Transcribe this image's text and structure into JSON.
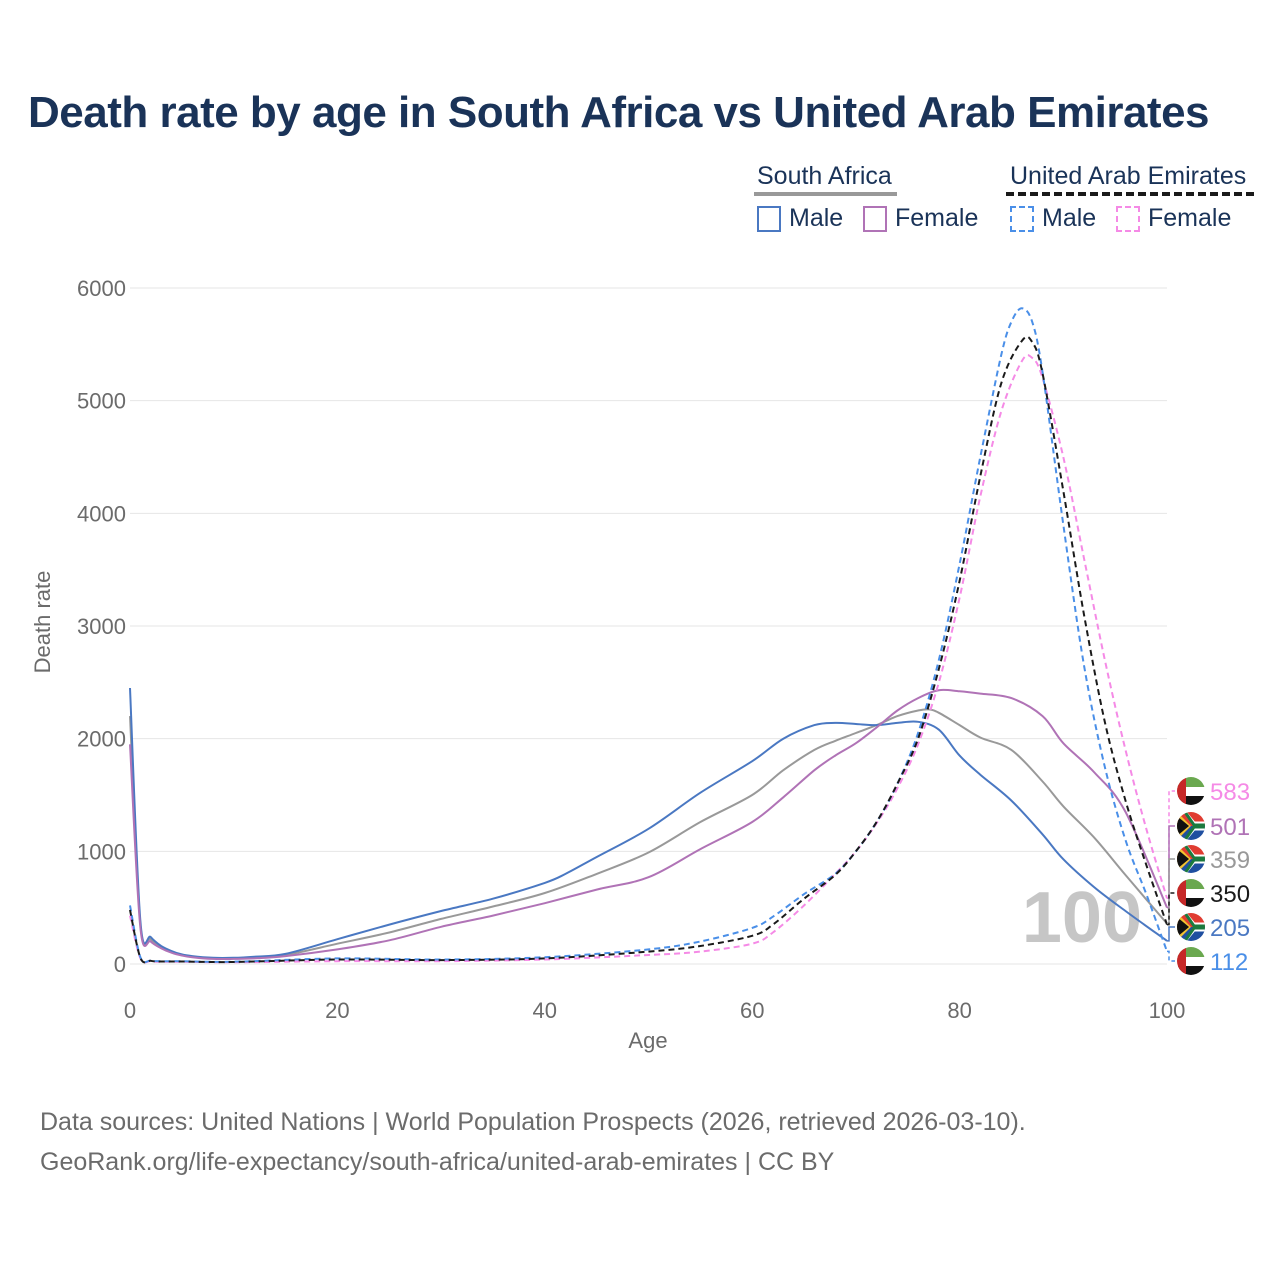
{
  "title": "Death rate by age in South Africa vs United Arab Emirates",
  "legend": {
    "groups": [
      {
        "name": "South Africa",
        "items": [
          {
            "label": "Male",
            "color": "#4a78c2",
            "style": "solid"
          },
          {
            "label": "Female",
            "color": "#b073b6",
            "style": "solid"
          }
        ]
      },
      {
        "name": "United Arab Emirates",
        "items": [
          {
            "label": "Male",
            "color": "#4a8fe8",
            "style": "dashed"
          },
          {
            "label": "Female",
            "color": "#f58ae6",
            "style": "dashed"
          }
        ]
      }
    ]
  },
  "footer": {
    "line1": "Data sources: United Nations | World Population Prospects (2026, retrieved 2026-03-10).",
    "line2": "GeoRank.org/life-expectancy/south-africa/united-arab-emirates | CC BY"
  },
  "chart_data": {
    "type": "line",
    "title": "Death rate by age in South Africa vs United Arab Emirates",
    "xlabel": "Age",
    "ylabel": "Death rate",
    "xlim": [
      0,
      100
    ],
    "ylim": [
      0,
      6000
    ],
    "xticks": [
      0,
      20,
      40,
      60,
      80,
      100
    ],
    "yticks": [
      0,
      1000,
      2000,
      3000,
      4000,
      5000,
      6000
    ],
    "grid": true,
    "watermark": "100",
    "series": [
      {
        "name": "South Africa Male",
        "color": "#4a78c2",
        "dash": "solid",
        "x": [
          0,
          1,
          2,
          3,
          4,
          5,
          6,
          8,
          10,
          12,
          15,
          20,
          25,
          30,
          35,
          40,
          42,
          45,
          50,
          55,
          60,
          63,
          66,
          68,
          70,
          72,
          74,
          76,
          78,
          80,
          82,
          85,
          88,
          90,
          93,
          96,
          100
        ],
        "y": [
          2450,
          380,
          240,
          160,
          115,
          85,
          70,
          55,
          55,
          65,
          90,
          220,
          350,
          470,
          580,
          720,
          800,
          950,
          1200,
          1520,
          1800,
          2000,
          2120,
          2140,
          2130,
          2120,
          2140,
          2150,
          2080,
          1850,
          1680,
          1450,
          1150,
          930,
          680,
          470,
          205
        ]
      },
      {
        "name": "South Africa Female",
        "color": "#b073b6",
        "dash": "solid",
        "x": [
          0,
          1,
          2,
          3,
          4,
          5,
          6,
          8,
          10,
          12,
          15,
          20,
          25,
          30,
          35,
          40,
          45,
          50,
          55,
          60,
          63,
          66,
          68,
          70,
          72,
          74,
          76,
          78,
          80,
          82,
          85,
          88,
          90,
          93,
          96,
          100
        ],
        "y": [
          1950,
          320,
          200,
          140,
          100,
          75,
          60,
          45,
          45,
          50,
          70,
          130,
          210,
          330,
          430,
          540,
          660,
          770,
          1020,
          1260,
          1480,
          1720,
          1850,
          1960,
          2100,
          2250,
          2360,
          2430,
          2420,
          2400,
          2360,
          2200,
          1960,
          1700,
          1350,
          501
        ]
      },
      {
        "name": "South Africa Total",
        "color": "#999999",
        "dash": "solid",
        "x": [
          0,
          1,
          2,
          3,
          4,
          5,
          6,
          8,
          10,
          12,
          15,
          20,
          25,
          30,
          35,
          40,
          45,
          50,
          55,
          60,
          63,
          66,
          68,
          70,
          72,
          74,
          76,
          77,
          78,
          80,
          82,
          85,
          88,
          90,
          93,
          96,
          100
        ],
        "y": [
          2200,
          350,
          220,
          150,
          108,
          80,
          65,
          50,
          50,
          58,
          80,
          180,
          280,
          400,
          510,
          630,
          800,
          990,
          1260,
          1500,
          1720,
          1900,
          1980,
          2050,
          2120,
          2200,
          2250,
          2260,
          2230,
          2120,
          2010,
          1900,
          1620,
          1400,
          1120,
          790,
          359
        ]
      },
      {
        "name": "United Arab Emirates Male",
        "color": "#4a8fe8",
        "dash": "dashed",
        "x": [
          0,
          1,
          2,
          3,
          5,
          10,
          20,
          30,
          40,
          50,
          55,
          60,
          62,
          65,
          68,
          70,
          72,
          74,
          76,
          78,
          80,
          82,
          84,
          85,
          86,
          87,
          88,
          90,
          92,
          94,
          96,
          98,
          100
        ],
        "y": [
          520,
          60,
          30,
          25,
          25,
          20,
          50,
          40,
          60,
          130,
          200,
          320,
          420,
          620,
          800,
          1000,
          1260,
          1600,
          2050,
          2700,
          3550,
          4500,
          5400,
          5700,
          5820,
          5700,
          5250,
          3900,
          2650,
          1750,
          1100,
          620,
          112
        ]
      },
      {
        "name": "United Arab Emirates Female",
        "color": "#f58ae6",
        "dash": "dashed",
        "x": [
          0,
          1,
          2,
          3,
          5,
          10,
          20,
          30,
          40,
          50,
          55,
          60,
          62,
          65,
          68,
          70,
          72,
          74,
          76,
          78,
          80,
          82,
          84,
          86,
          87,
          88,
          90,
          92,
          94,
          96,
          98,
          100
        ],
        "y": [
          430,
          50,
          25,
          20,
          20,
          15,
          25,
          25,
          40,
          80,
          110,
          180,
          280,
          520,
          800,
          1000,
          1250,
          1560,
          1950,
          2500,
          3250,
          4150,
          4900,
          5350,
          5380,
          5200,
          4500,
          3600,
          2700,
          1900,
          1200,
          583
        ]
      },
      {
        "name": "United Arab Emirates Total",
        "color": "#1a1a1a",
        "dash": "dashed",
        "x": [
          0,
          1,
          2,
          3,
          5,
          10,
          20,
          30,
          40,
          50,
          55,
          60,
          62,
          65,
          68,
          70,
          72,
          74,
          76,
          78,
          80,
          82,
          84,
          86,
          87,
          88,
          90,
          92,
          94,
          96,
          98,
          100
        ],
        "y": [
          480,
          55,
          28,
          22,
          22,
          18,
          40,
          35,
          50,
          110,
          160,
          250,
          350,
          580,
          790,
          1000,
          1260,
          1600,
          2000,
          2620,
          3400,
          4330,
          5150,
          5530,
          5520,
          5240,
          4200,
          3100,
          2150,
          1450,
          880,
          350
        ]
      }
    ],
    "end_labels": [
      {
        "value": "583",
        "color": "#f58ae6",
        "flag": "uae"
      },
      {
        "value": "501",
        "color": "#b073b6",
        "flag": "za"
      },
      {
        "value": "359",
        "color": "#999999",
        "flag": "za"
      },
      {
        "value": "350",
        "color": "#1a1a1a",
        "flag": "uae"
      },
      {
        "value": "205",
        "color": "#4a78c2",
        "flag": "za"
      },
      {
        "value": "112",
        "color": "#4a8fe8",
        "flag": "uae"
      }
    ]
  }
}
